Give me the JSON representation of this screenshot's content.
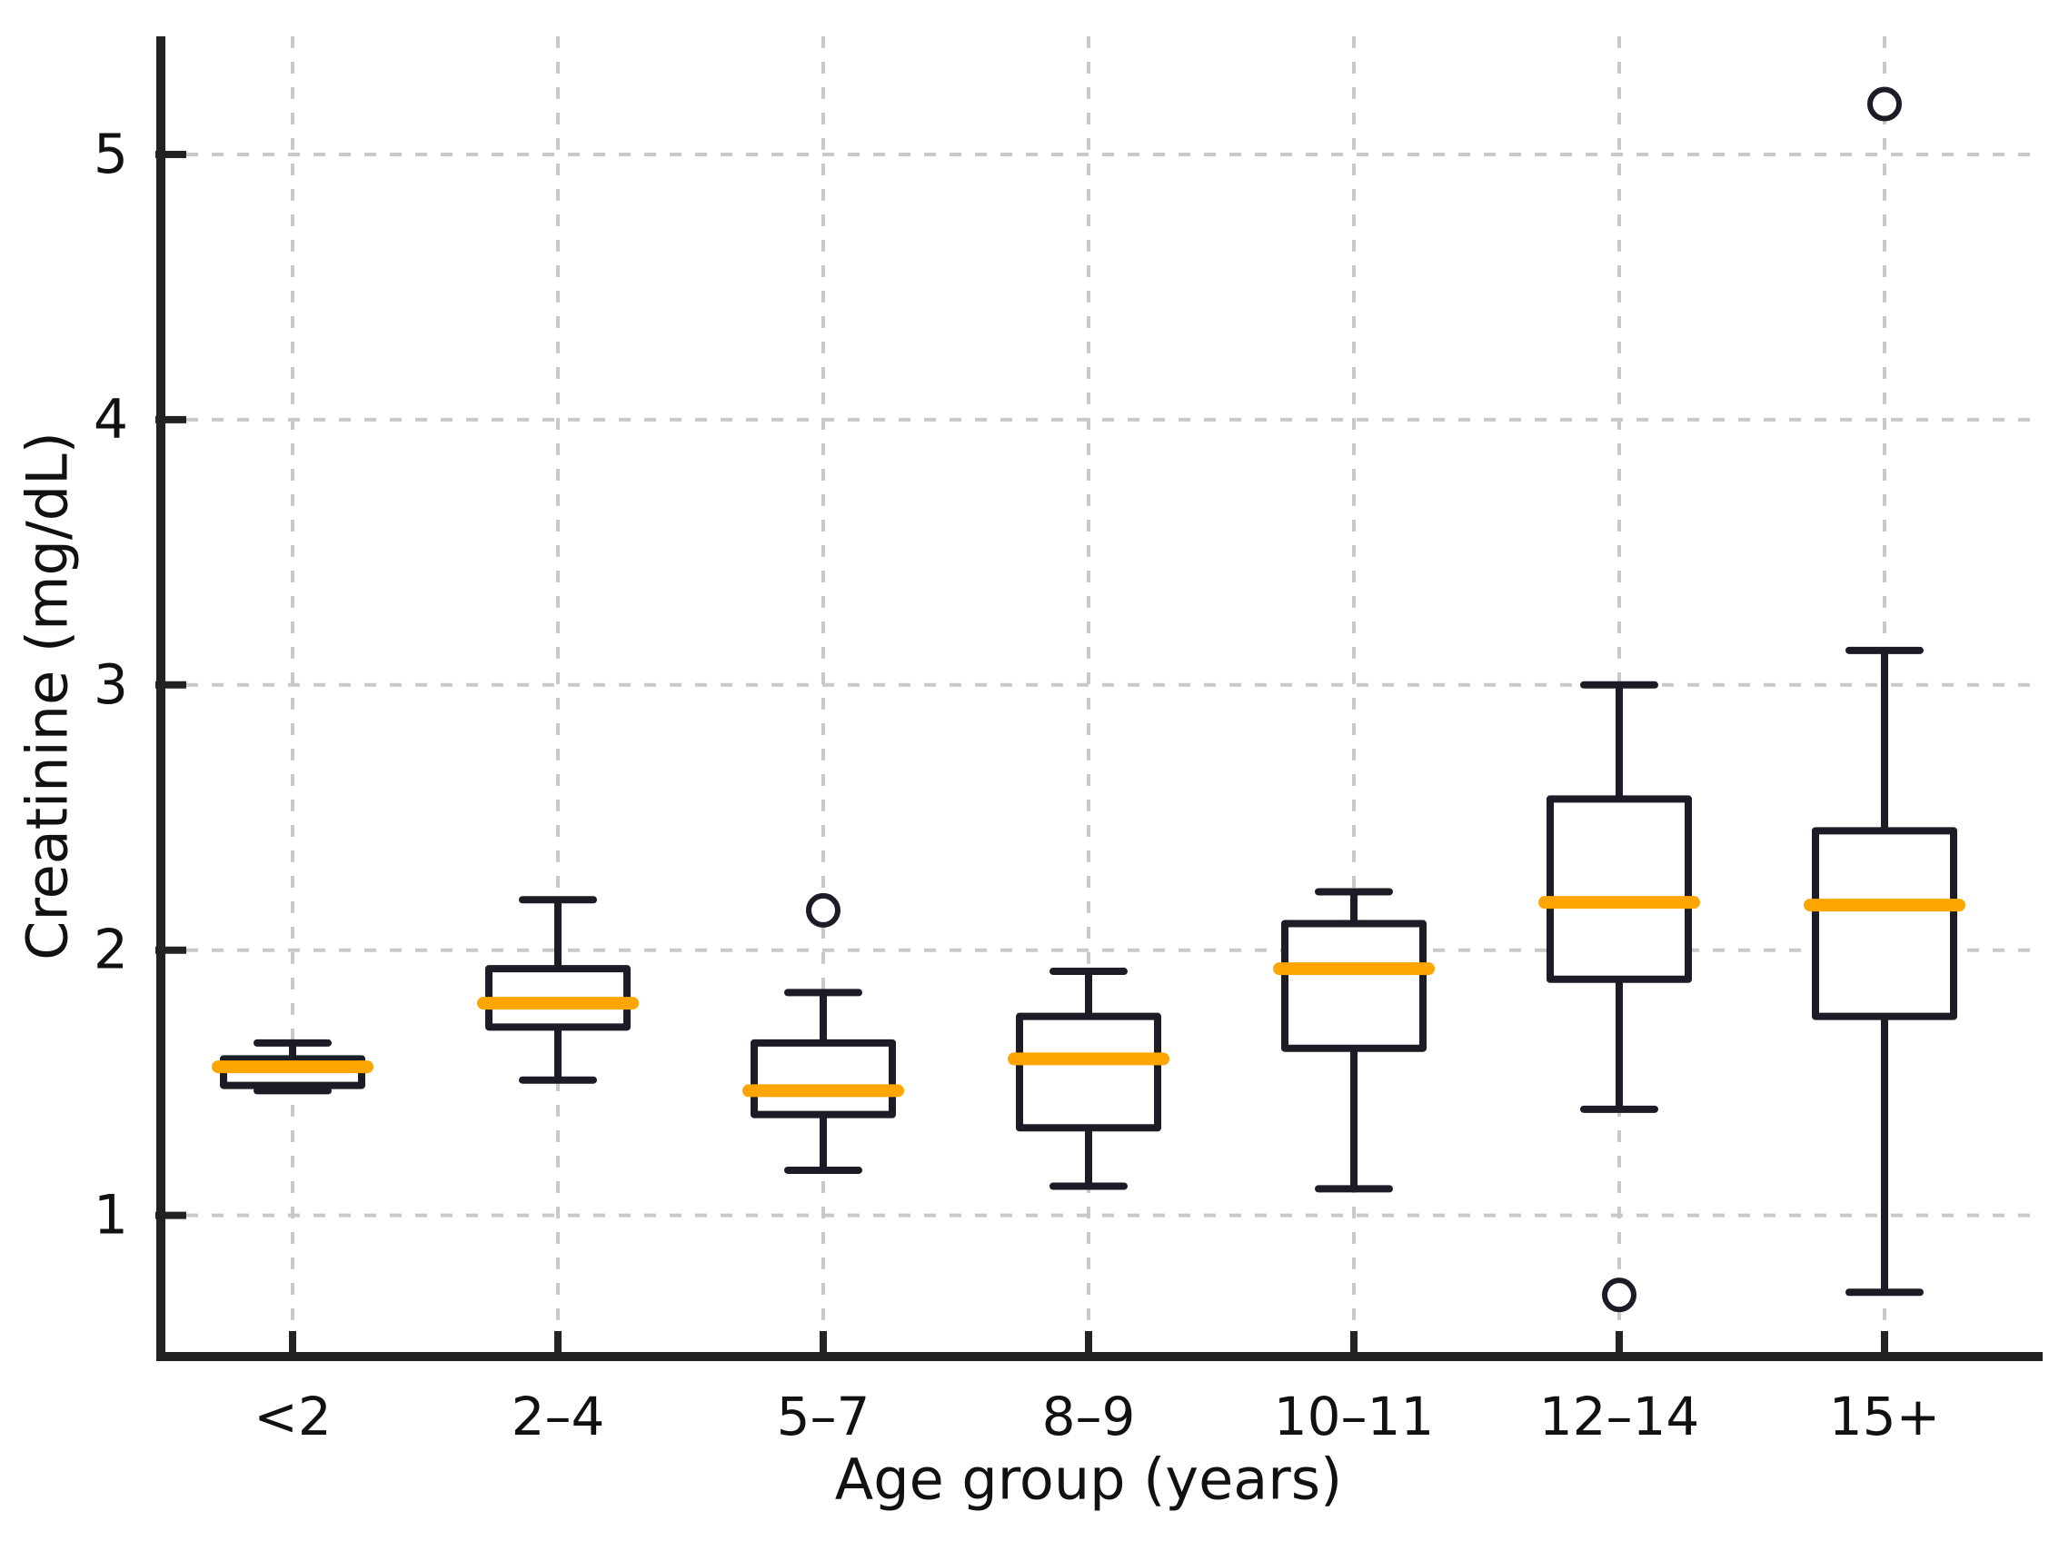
{
  "chart_data": {
    "type": "boxplot",
    "title": "",
    "xlabel": "Age group (years)",
    "ylabel": "Creatinine (mg/dL)",
    "categories": [
      "<2",
      "2–4",
      "5–7",
      "8–9",
      "10–11",
      "12–14",
      "15+"
    ],
    "yticks": [
      "1",
      "2",
      "3",
      "4",
      "5"
    ],
    "ylim": [
      0.47,
      5.45
    ],
    "grid": true,
    "legend": "none",
    "colors": {
      "box_line": "#1c1c26",
      "median": "#FFA500",
      "grid": "#c9c9c9",
      "background": "#ffffff",
      "tick_text": "#111111"
    },
    "boxes": [
      {
        "label": "<2",
        "whisker_low": 1.47,
        "q1": 1.49,
        "median": 1.56,
        "q3": 1.59,
        "whisker_high": 1.65,
        "outliers": []
      },
      {
        "label": "2–4",
        "whisker_low": 1.51,
        "q1": 1.71,
        "median": 1.8,
        "q3": 1.93,
        "whisker_high": 2.19,
        "outliers": []
      },
      {
        "label": "5–7",
        "whisker_low": 1.17,
        "q1": 1.38,
        "median": 1.47,
        "q3": 1.65,
        "whisker_high": 1.84,
        "outliers": [
          2.15
        ]
      },
      {
        "label": "8–9",
        "whisker_low": 1.11,
        "q1": 1.33,
        "median": 1.59,
        "q3": 1.75,
        "whisker_high": 1.92,
        "outliers": []
      },
      {
        "label": "10–11",
        "whisker_low": 1.1,
        "q1": 1.63,
        "median": 1.93,
        "q3": 2.1,
        "whisker_high": 2.22,
        "outliers": []
      },
      {
        "label": "12–14",
        "whisker_low": 1.4,
        "q1": 1.89,
        "median": 2.18,
        "q3": 2.57,
        "whisker_high": 3.0,
        "outliers": [
          0.7
        ]
      },
      {
        "label": "15+",
        "whisker_low": 0.71,
        "q1": 1.75,
        "median": 2.17,
        "q3": 2.45,
        "whisker_high": 3.13,
        "outliers": [
          5.19
        ]
      }
    ]
  }
}
